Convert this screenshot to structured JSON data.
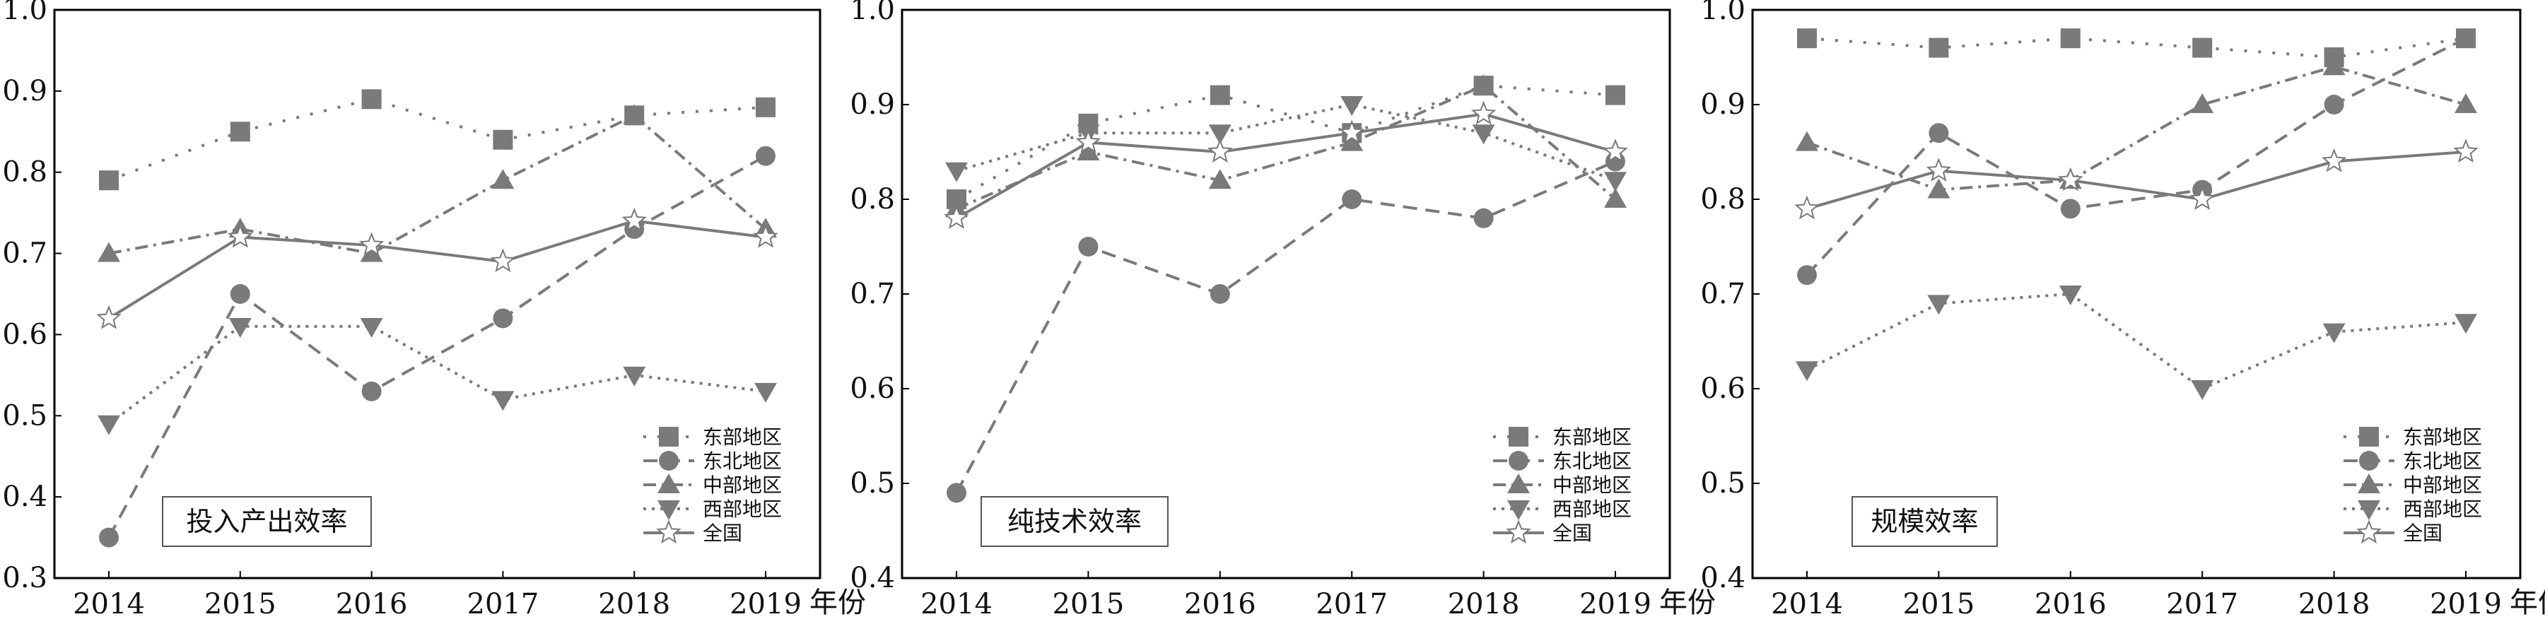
{
  "axis_suffix": "年份",
  "series_styles": {
    "东部地区": {
      "color": "#7a7a7a",
      "marker": "square",
      "dash": "4 16"
    },
    "东北地区": {
      "color": "#7a7a7a",
      "marker": "circle",
      "dash": "20 12"
    },
    "中部地区": {
      "color": "#7a7a7a",
      "marker": "triangle-up",
      "dash": "18 8 4 8"
    },
    "西部地区": {
      "color": "#7a7a7a",
      "marker": "triangle-down",
      "dash": "4 8"
    },
    "全国": {
      "color": "#7a7a7a",
      "marker": "star",
      "dash": ""
    }
  },
  "chart_data": [
    {
      "type": "line",
      "title": "投入产出效率",
      "xlabel": "年份",
      "ylabel": "",
      "ylim": [
        0.3,
        1.0
      ],
      "yticks": [
        "0.3",
        "0.4",
        "0.5",
        "0.6",
        "0.7",
        "0.8",
        "0.9",
        "1.0"
      ],
      "categories": [
        "2014",
        "2015",
        "2016",
        "2017",
        "2018",
        "2019"
      ],
      "legend": "bottom-right",
      "series": [
        {
          "name": "东部地区",
          "values": [
            0.79,
            0.85,
            0.89,
            0.84,
            0.87,
            0.88
          ]
        },
        {
          "name": "东北地区",
          "values": [
            0.35,
            0.65,
            0.53,
            0.62,
            0.73,
            0.82
          ]
        },
        {
          "name": "中部地区",
          "values": [
            0.7,
            0.73,
            0.7,
            0.79,
            0.87,
            0.73
          ]
        },
        {
          "name": "西部地区",
          "values": [
            0.49,
            0.61,
            0.61,
            0.52,
            0.55,
            0.53
          ]
        },
        {
          "name": "全国",
          "values": [
            0.62,
            0.72,
            0.71,
            0.69,
            0.74,
            0.72
          ]
        }
      ]
    },
    {
      "type": "line",
      "title": "纯技术效率",
      "xlabel": "年份",
      "ylabel": "",
      "ylim": [
        0.4,
        1.0
      ],
      "yticks": [
        "0.4",
        "0.5",
        "0.6",
        "0.7",
        "0.8",
        "0.9",
        "1.0"
      ],
      "categories": [
        "2014",
        "2015",
        "2016",
        "2017",
        "2018",
        "2019"
      ],
      "legend": "bottom-right",
      "series": [
        {
          "name": "东部地区",
          "values": [
            0.8,
            0.88,
            0.91,
            0.87,
            0.92,
            0.91
          ]
        },
        {
          "name": "东北地区",
          "values": [
            0.49,
            0.75,
            0.7,
            0.8,
            0.78,
            0.84
          ]
        },
        {
          "name": "中部地区",
          "values": [
            0.79,
            0.85,
            0.82,
            0.86,
            0.92,
            0.8
          ]
        },
        {
          "name": "西部地区",
          "values": [
            0.83,
            0.87,
            0.87,
            0.9,
            0.87,
            0.82
          ]
        },
        {
          "name": "全国",
          "values": [
            0.78,
            0.86,
            0.85,
            0.87,
            0.89,
            0.85
          ]
        }
      ]
    },
    {
      "type": "line",
      "title": "规模效率",
      "xlabel": "年份",
      "ylabel": "",
      "ylim": [
        0.4,
        1.0
      ],
      "yticks": [
        "0.4",
        "0.5",
        "0.6",
        "0.7",
        "0.8",
        "0.9",
        "1.0"
      ],
      "categories": [
        "2014",
        "2015",
        "2016",
        "2017",
        "2018",
        "2019"
      ],
      "legend": "bottom-right",
      "series": [
        {
          "name": "东部地区",
          "values": [
            0.97,
            0.96,
            0.97,
            0.96,
            0.95,
            0.97
          ]
        },
        {
          "name": "东北地区",
          "values": [
            0.72,
            0.87,
            0.79,
            0.81,
            0.9,
            0.97
          ]
        },
        {
          "name": "中部地区",
          "values": [
            0.86,
            0.81,
            0.82,
            0.9,
            0.94,
            0.9
          ]
        },
        {
          "name": "西部地区",
          "values": [
            0.62,
            0.69,
            0.7,
            0.6,
            0.66,
            0.67
          ]
        },
        {
          "name": "全国",
          "values": [
            0.79,
            0.83,
            0.82,
            0.8,
            0.84,
            0.85
          ]
        }
      ]
    }
  ]
}
